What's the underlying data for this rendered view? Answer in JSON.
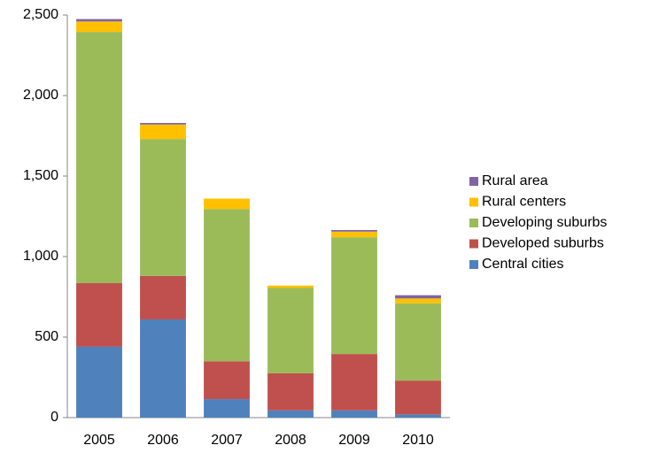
{
  "chart_data": {
    "type": "stacked_bar",
    "categories": [
      "2005",
      "2006",
      "2007",
      "2008",
      "2009",
      "2010"
    ],
    "series": [
      {
        "name": "Central cities",
        "color": "#4f81bd",
        "values": [
          440,
          610,
          115,
          45,
          45,
          20
        ]
      },
      {
        "name": "Developed suburbs",
        "color": "#c0504d",
        "values": [
          395,
          270,
          235,
          230,
          350,
          210
        ]
      },
      {
        "name": "Developing suburbs",
        "color": "#9bbb59",
        "values": [
          1560,
          850,
          945,
          530,
          725,
          480
        ]
      },
      {
        "name": "Rural centers",
        "color": "#ffc000",
        "values": [
          65,
          90,
          65,
          15,
          35,
          30
        ]
      },
      {
        "name": "Rural area",
        "color": "#8064a2",
        "values": [
          15,
          10,
          0,
          0,
          10,
          20
        ]
      }
    ],
    "ylim": [
      0,
      2500
    ],
    "yticks": [
      0,
      {
        "value": 500,
        "label": "500"
      },
      {
        "value": 1000,
        "label": "1,000"
      },
      {
        "value": 1500,
        "label": "1,500"
      },
      {
        "value": 2000,
        "label": "2,000"
      },
      {
        "value": 2500,
        "label": "2,500"
      }
    ],
    "legend": "right",
    "grid": false
  }
}
